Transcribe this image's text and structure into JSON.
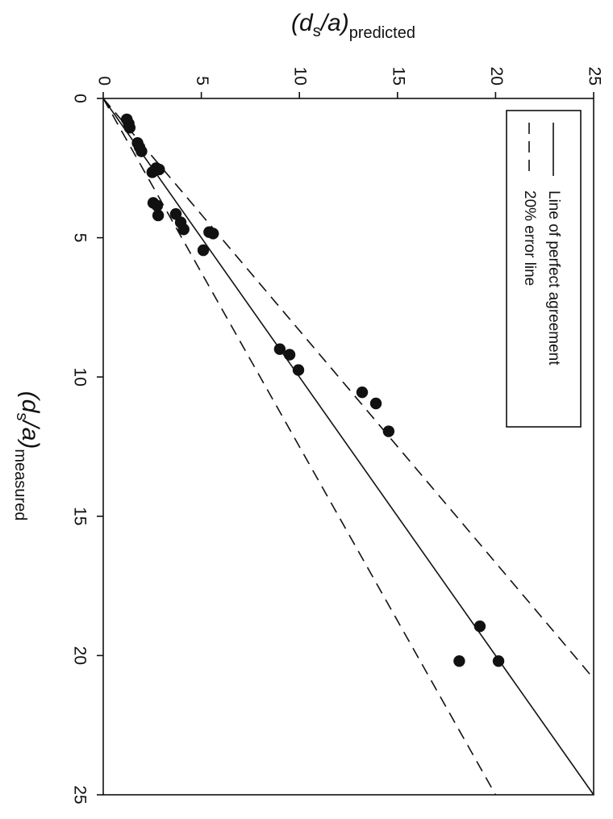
{
  "chart_data": {
    "type": "scatter",
    "x_axis_label": {
      "prefix": "(",
      "var": "d",
      "sub": "s",
      "div": "/a)",
      "suffix_sub": "measured"
    },
    "y_axis_label": {
      "prefix": "(",
      "var": "d",
      "sub": "s",
      "div": "/a)",
      "suffix_sub": "predicted"
    },
    "xlim": [
      0,
      25
    ],
    "ylim": [
      0,
      25
    ],
    "x_ticks": [
      "0",
      "5",
      "10",
      "15",
      "20",
      "25"
    ],
    "y_ticks": [
      "0",
      "5",
      "10",
      "15",
      "20",
      "25"
    ],
    "grid": false,
    "orientation": "rotated 90 degrees clockwise",
    "legend": {
      "placement": "top-right",
      "entries": [
        {
          "label": "Line of perfect agreement",
          "style": "solid"
        },
        {
          "label": "20% error line",
          "style": "dashed"
        }
      ]
    },
    "lines": [
      {
        "name": "Line of perfect agreement",
        "style": "solid",
        "x": [
          0,
          25
        ],
        "y": [
          0,
          25
        ]
      },
      {
        "name": "20% error line",
        "style": "dashed",
        "x": [
          0,
          20.83
        ],
        "y": [
          0,
          25
        ]
      },
      {
        "name": "20% error line",
        "style": "dashed",
        "x": [
          0,
          25
        ],
        "y": [
          0,
          20
        ]
      }
    ],
    "points": [
      {
        "x": 0.75,
        "y": 1.2
      },
      {
        "x": 0.9,
        "y": 1.3
      },
      {
        "x": 1.05,
        "y": 1.35
      },
      {
        "x": 1.6,
        "y": 1.75
      },
      {
        "x": 1.75,
        "y": 1.85
      },
      {
        "x": 1.9,
        "y": 1.95
      },
      {
        "x": 2.5,
        "y": 2.7
      },
      {
        "x": 2.65,
        "y": 2.5
      },
      {
        "x": 2.55,
        "y": 2.85
      },
      {
        "x": 3.75,
        "y": 2.55
      },
      {
        "x": 3.85,
        "y": 2.75
      },
      {
        "x": 4.2,
        "y": 2.8
      },
      {
        "x": 4.15,
        "y": 3.7
      },
      {
        "x": 4.45,
        "y": 3.95
      },
      {
        "x": 4.7,
        "y": 4.1
      },
      {
        "x": 4.8,
        "y": 5.4
      },
      {
        "x": 4.85,
        "y": 5.6
      },
      {
        "x": 5.45,
        "y": 5.1
      },
      {
        "x": 9.0,
        "y": 9.0
      },
      {
        "x": 9.2,
        "y": 9.5
      },
      {
        "x": 9.75,
        "y": 9.95
      },
      {
        "x": 10.55,
        "y": 13.2
      },
      {
        "x": 10.95,
        "y": 13.9
      },
      {
        "x": 11.95,
        "y": 14.55
      },
      {
        "x": 18.95,
        "y": 19.2
      },
      {
        "x": 20.2,
        "y": 18.15
      },
      {
        "x": 20.2,
        "y": 20.15
      }
    ]
  }
}
